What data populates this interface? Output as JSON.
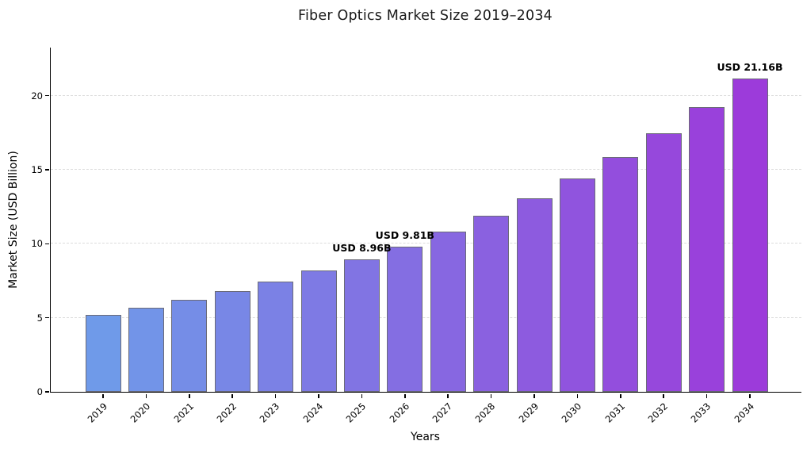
{
  "chart_data": {
    "type": "bar",
    "title": "Fiber Optics Market Size 2019–2034",
    "xlabel": "Years",
    "ylabel": "Market Size (USD Billion)",
    "categories": [
      "2019",
      "2020",
      "2021",
      "2022",
      "2023",
      "2024",
      "2025",
      "2026",
      "2027",
      "2028",
      "2029",
      "2030",
      "2031",
      "2032",
      "2033",
      "2034"
    ],
    "values": [
      5.2,
      5.7,
      6.24,
      6.83,
      7.47,
      8.18,
      8.96,
      9.81,
      10.8,
      11.89,
      13.09,
      14.41,
      15.86,
      17.46,
      19.22,
      21.16
    ],
    "ylim": [
      0,
      23.25
    ],
    "yticks": [
      0,
      5,
      10,
      15,
      20
    ],
    "grid": "horizontal-dashed",
    "legend_position": "none",
    "annotations": [
      {
        "category": "2025",
        "text": "USD 8.96B"
      },
      {
        "category": "2026",
        "text": "USD 9.81B"
      },
      {
        "category": "2034",
        "text": "USD 21.16B"
      }
    ],
    "colors": {
      "bar_gradient_start": "#6f9ae9",
      "bar_gradient_end": "#9c3bda",
      "bar_edge": "#6b6b78",
      "gridline": "#dcdcdc",
      "axis": "#000000",
      "text": "#000000",
      "background": "#ffffff"
    }
  }
}
